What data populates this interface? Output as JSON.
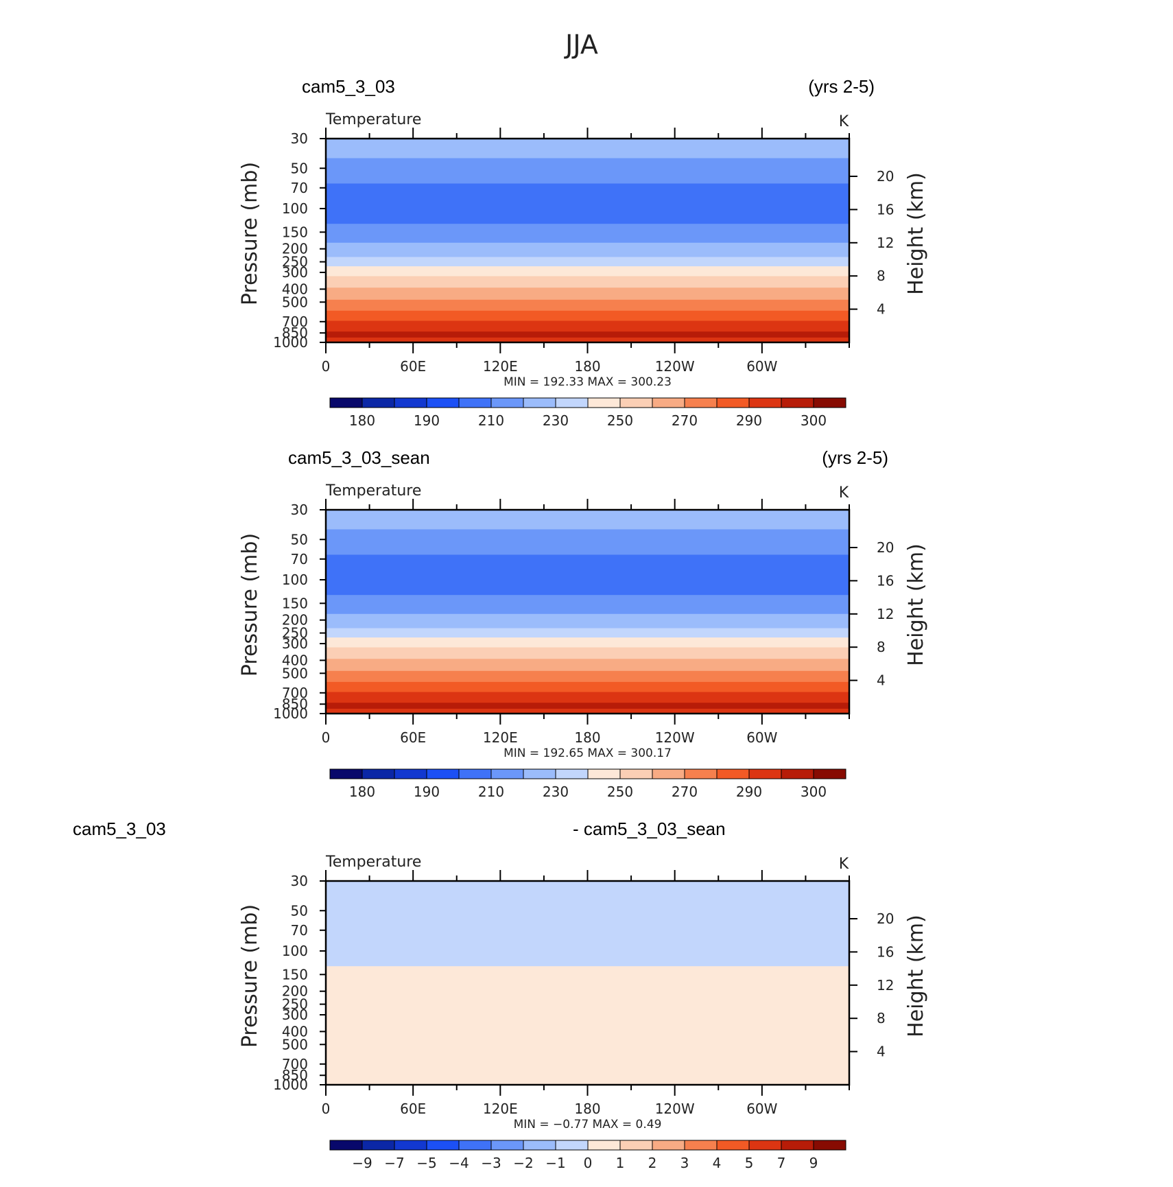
{
  "page_title": "JJA",
  "theme": {
    "ramp_colors": [
      "#08086b",
      "#0b27a6",
      "#1238d0",
      "#1c50f5",
      "#3f72f8",
      "#6b97f9",
      "#9bbcfb",
      "#c2d6fc",
      "#e0ecfd",
      "#fde8d8",
      "#fbcfb5",
      "#f8ab84",
      "#f6804e",
      "#f25a25",
      "#dc3512",
      "#b71c08",
      "#870b02"
    ],
    "frame_color": "#000000"
  },
  "panels": [
    {
      "case_name": "cam5_3_03",
      "years": "(yrs 2-5)",
      "variable": "Temperature",
      "units": "K",
      "min_max": "MIN =  192.33   MAX =  300.23"
    },
    {
      "case_name": "cam5_3_03_sean",
      "years": "(yrs 2-5)",
      "variable": "Temperature",
      "units": "K",
      "min_max": "MIN =  192.65   MAX =  300.17"
    },
    {
      "case_name": "cam5_3_03",
      "diff_name": "- cam5_3_03_sean",
      "variable": "Temperature",
      "units": "K",
      "min_max": "MIN =   −0.77   MAX =     0.49"
    }
  ],
  "chart_data": [
    {
      "type": "filled-contour",
      "title": "Temperature",
      "units": "K",
      "xlabel": "",
      "ylabel": "Pressure (mb)",
      "y2label": "Height (km)",
      "xlim": [
        0,
        360
      ],
      "x_ticks": [
        "0",
        "60E",
        "120E",
        "180",
        "120W",
        "60W"
      ],
      "x_tick_values": [
        0,
        60,
        120,
        180,
        240,
        300
      ],
      "ylim": [
        1000,
        30
      ],
      "y_ticks": [
        30,
        50,
        70,
        100,
        150,
        200,
        250,
        300,
        400,
        500,
        700,
        850,
        1000
      ],
      "y2_ticks": [
        20,
        16,
        12,
        8,
        4
      ],
      "contour_levels": [
        180,
        185,
        190,
        200,
        210,
        220,
        230,
        240,
        250,
        260,
        270,
        280,
        290,
        295,
        300
      ],
      "colorbar_labels": [
        "180",
        "190",
        "210",
        "230",
        "250",
        "270",
        "290",
        "300"
      ],
      "min": 192.33,
      "max": 300.23,
      "layers": [
        {
          "p_top": 30,
          "p_bottom": 42,
          "level": 6
        },
        {
          "p_top": 42,
          "p_bottom": 65,
          "level": 5
        },
        {
          "p_top": 65,
          "p_bottom": 130,
          "level": 4
        },
        {
          "p_top": 130,
          "p_bottom": 180,
          "level": 5
        },
        {
          "p_top": 180,
          "p_bottom": 230,
          "level": 6
        },
        {
          "p_top": 230,
          "p_bottom": 270,
          "level": 7
        },
        {
          "p_top": 270,
          "p_bottom": 320,
          "level": 8
        },
        {
          "p_top": 320,
          "p_bottom": 390,
          "level": 9
        },
        {
          "p_top": 390,
          "p_bottom": 480,
          "level": 10
        },
        {
          "p_top": 480,
          "p_bottom": 580,
          "level": 11
        },
        {
          "p_top": 580,
          "p_bottom": 690,
          "level": 12
        },
        {
          "p_top": 690,
          "p_bottom": 830,
          "level": 13
        },
        {
          "p_top": 830,
          "p_bottom": 920,
          "level": 14
        },
        {
          "p_top": 920,
          "p_bottom": 1000,
          "level": 13
        }
      ]
    },
    {
      "type": "filled-contour",
      "title": "Temperature",
      "units": "K",
      "xlabel": "",
      "ylabel": "Pressure (mb)",
      "y2label": "Height (km)",
      "xlim": [
        0,
        360
      ],
      "x_ticks": [
        "0",
        "60E",
        "120E",
        "180",
        "120W",
        "60W"
      ],
      "x_tick_values": [
        0,
        60,
        120,
        180,
        240,
        300
      ],
      "ylim": [
        1000,
        30
      ],
      "y_ticks": [
        30,
        50,
        70,
        100,
        150,
        200,
        250,
        300,
        400,
        500,
        700,
        850,
        1000
      ],
      "y2_ticks": [
        20,
        16,
        12,
        8,
        4
      ],
      "contour_levels": [
        180,
        185,
        190,
        200,
        210,
        220,
        230,
        240,
        250,
        260,
        270,
        280,
        290,
        295,
        300
      ],
      "colorbar_labels": [
        "180",
        "190",
        "210",
        "230",
        "250",
        "270",
        "290",
        "300"
      ],
      "min": 192.65,
      "max": 300.17,
      "layers": [
        {
          "p_top": 30,
          "p_bottom": 42,
          "level": 6
        },
        {
          "p_top": 42,
          "p_bottom": 65,
          "level": 5
        },
        {
          "p_top": 65,
          "p_bottom": 130,
          "level": 4
        },
        {
          "p_top": 130,
          "p_bottom": 180,
          "level": 5
        },
        {
          "p_top": 180,
          "p_bottom": 230,
          "level": 6
        },
        {
          "p_top": 230,
          "p_bottom": 270,
          "level": 7
        },
        {
          "p_top": 270,
          "p_bottom": 320,
          "level": 8
        },
        {
          "p_top": 320,
          "p_bottom": 390,
          "level": 9
        },
        {
          "p_top": 390,
          "p_bottom": 480,
          "level": 10
        },
        {
          "p_top": 480,
          "p_bottom": 580,
          "level": 11
        },
        {
          "p_top": 580,
          "p_bottom": 690,
          "level": 12
        },
        {
          "p_top": 690,
          "p_bottom": 830,
          "level": 13
        },
        {
          "p_top": 830,
          "p_bottom": 920,
          "level": 14
        },
        {
          "p_top": 920,
          "p_bottom": 1000,
          "level": 13
        }
      ]
    },
    {
      "type": "filled-contour",
      "title": "Temperature",
      "units": "K",
      "xlabel": "",
      "ylabel": "Pressure (mb)",
      "y2label": "Height (km)",
      "xlim": [
        0,
        360
      ],
      "x_ticks": [
        "0",
        "60E",
        "120E",
        "180",
        "120W",
        "60W"
      ],
      "x_tick_values": [
        0,
        60,
        120,
        180,
        240,
        300
      ],
      "ylim": [
        1000,
        30
      ],
      "y_ticks": [
        30,
        50,
        70,
        100,
        150,
        200,
        250,
        300,
        400,
        500,
        700,
        850,
        1000
      ],
      "y2_ticks": [
        20,
        16,
        12,
        8,
        4
      ],
      "contour_levels": [
        -9,
        -7,
        -5,
        -4,
        -3,
        -2,
        -1,
        0,
        1,
        2,
        3,
        4,
        5,
        7,
        9
      ],
      "colorbar_labels": [
        "−9",
        "−7",
        "−5",
        "−4",
        "−3",
        "−2",
        "−1",
        "0",
        "1",
        "2",
        "3",
        "4",
        "5",
        "7",
        "9"
      ],
      "min": -0.77,
      "max": 0.49,
      "layers": [
        {
          "p_top": 30,
          "p_bottom": 130,
          "level": 7
        },
        {
          "p_top": 130,
          "p_bottom": 1000,
          "level": 8
        }
      ]
    }
  ]
}
